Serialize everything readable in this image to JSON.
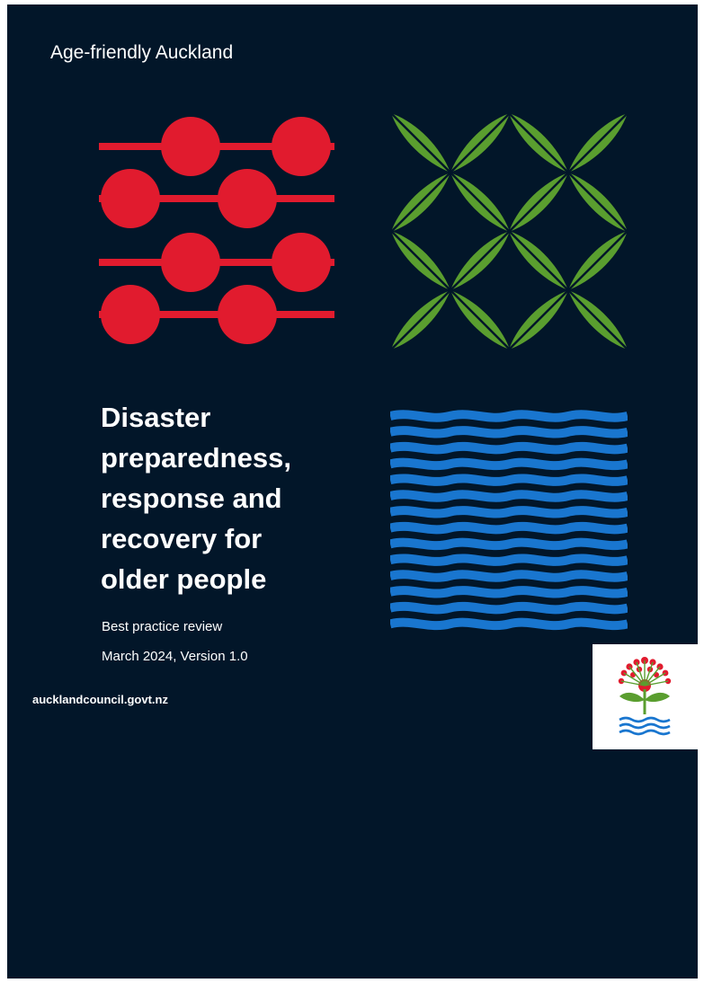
{
  "cover": {
    "series_title": "Age-friendly Auckland",
    "title_lines": [
      "Disaster",
      "preparedness,",
      "response and",
      "recovery for",
      "older people"
    ],
    "subtitle": "Best practice review",
    "version": "March 2024, Version 1.0",
    "website": "aucklandcouncil.govt.nz"
  },
  "colors": {
    "background": "#021629",
    "bead_red": "#e11b2e",
    "leaf_green": "#5a9e2f",
    "wave_blue": "#1976cf",
    "text": "#ffffff"
  },
  "icons": {
    "beads": "red-bead-pattern-icon",
    "leaves": "green-leaf-pattern-icon",
    "waves": "blue-wave-pattern-icon",
    "logo": "pohutukawa-logo-icon"
  }
}
